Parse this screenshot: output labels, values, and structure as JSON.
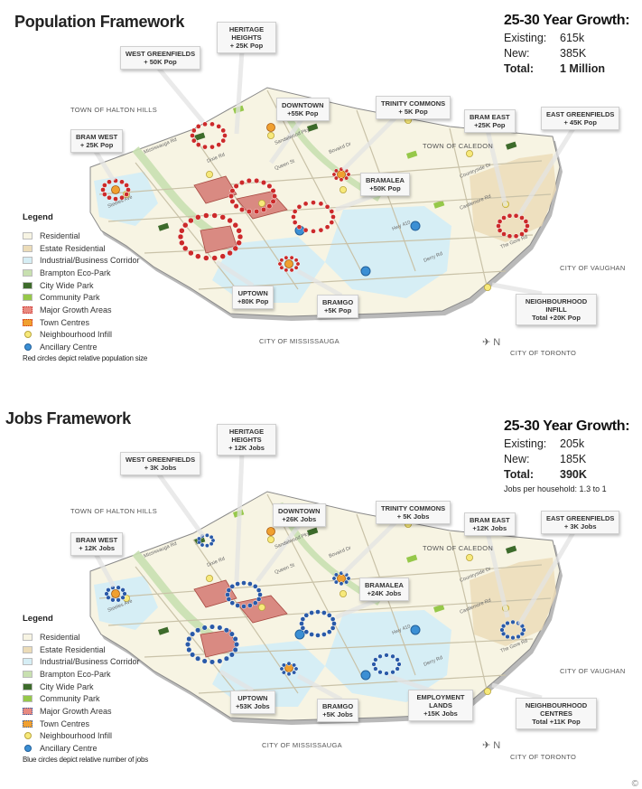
{
  "colors": {
    "residential": "#f7f4e3",
    "estate_residential": "#ecdcb8",
    "industrial": "#d6eef5",
    "eco_park": "#c8e0b0",
    "city_park": "#3d6b2b",
    "community_park": "#96c84a",
    "growth_area": "#d9534f",
    "town_centre": "#f0a030",
    "infill": "#f7e97a",
    "ancillary": "#3b8fd4",
    "pop_circle": "#cc2a2a",
    "jobs_circle": "#2a5aa8"
  },
  "population": {
    "title": "Population Framework",
    "growth": {
      "title": "25-30 Year Growth:",
      "rows": [
        {
          "label": "Existing:",
          "value": "615k"
        },
        {
          "label": "New:",
          "value": "385K"
        },
        {
          "label": "Total:",
          "value": "1 Million"
        }
      ]
    },
    "callouts": [
      {
        "name": "HERITAGE HEIGHTS",
        "value": "+ 25K Pop"
      },
      {
        "name": "WEST GREENFIELDS",
        "value": "+ 50K Pop"
      },
      {
        "name": "DOWNTOWN",
        "value": "+55K Pop"
      },
      {
        "name": "TRINITY COMMONS",
        "value": "+ 5K Pop"
      },
      {
        "name": "BRAM EAST",
        "value": "+25K Pop"
      },
      {
        "name": "EAST GREENFIELDS",
        "value": "+ 45K Pop"
      },
      {
        "name": "BRAM WEST",
        "value": "+ 25K Pop"
      },
      {
        "name": "BRAMALEA",
        "value": "+50K Pop"
      },
      {
        "name": "UPTOWN",
        "value": "+80K Pop"
      },
      {
        "name": "BRAMGO",
        "value": "+5K Pop"
      },
      {
        "name": "NEIGHBOURHOOD INFILL",
        "value": "Total +20K Pop"
      }
    ],
    "places": [
      "TOWN OF HALTON HILLS",
      "TOWN OF CALEDON",
      "CITY OF VAUGHAN",
      "CITY OF MISSISSAUGA",
      "CITY OF TORONTO"
    ],
    "legend_note": "Red circles depict relative population size"
  },
  "jobs": {
    "title": "Jobs Framework",
    "growth": {
      "title": "25-30 Year Growth:",
      "rows": [
        {
          "label": "Existing:",
          "value": "205k"
        },
        {
          "label": "New:",
          "value": "185K"
        },
        {
          "label": "Total:",
          "value": "390K"
        }
      ],
      "note": "Jobs per household: 1.3 to 1"
    },
    "callouts": [
      {
        "name": "HERITAGE HEIGHTS",
        "value": "+ 12K Jobs"
      },
      {
        "name": "WEST GREENFIELDS",
        "value": "+ 3K Jobs"
      },
      {
        "name": "DOWNTOWN",
        "value": "+26K Jobs"
      },
      {
        "name": "TRINITY COMMONS",
        "value": "+ 5K Jobs"
      },
      {
        "name": "BRAM EAST",
        "value": "+12K Jobs"
      },
      {
        "name": "EAST GREENFIELDS",
        "value": "+ 3K Jobs"
      },
      {
        "name": "BRAM WEST",
        "value": "+ 12K Jobs"
      },
      {
        "name": "BRAMALEA",
        "value": "+24K Jobs"
      },
      {
        "name": "UPTOWN",
        "value": "+53K Jobs"
      },
      {
        "name": "BRAMGO",
        "value": "+5K Jobs"
      },
      {
        "name": "EMPLOYMENT LANDS",
        "value": "+15K Jobs"
      },
      {
        "name": "NEIGHBOURHOOD CENTRES",
        "value": "Total +11K Pop"
      }
    ],
    "places": [
      "TOWN OF HALTON HILLS",
      "TOWN OF CALEDON",
      "CITY OF VAUGHAN",
      "CITY OF MISSISSAUGA",
      "CITY OF TORONTO"
    ],
    "legend_note": "Blue circles depict relative number of jobs"
  },
  "legend": {
    "title": "Legend",
    "items": [
      "Residential",
      "Estate Residential",
      "Industrial/Business Corridor",
      "Brampton Eco-Park",
      "City Wide Park",
      "Community Park",
      "Major Growth Areas",
      "Town Centres",
      "Neighbourhood Infill",
      "Ancillary Centre"
    ]
  },
  "roads": [
    "Mississauga Rd",
    "Sandalwood Pky",
    "Steeles Ave",
    "Queen St",
    "Bovaird Dr",
    "Hwy 410",
    "Countryside Dr",
    "Castlemore Rd",
    "The Gore Rd",
    "Derry Rd",
    "Dixie Rd"
  ]
}
